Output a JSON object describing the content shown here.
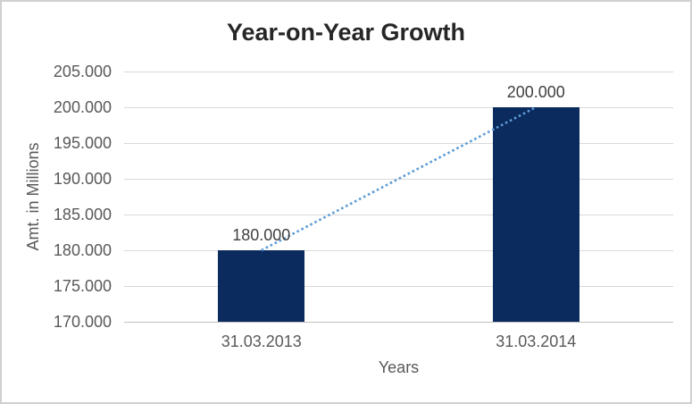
{
  "chart_data": {
    "type": "bar",
    "title": "Year-on-Year Growth",
    "xlabel": "Years",
    "ylabel": "Amt. in Millions",
    "categories": [
      "31.03.2013",
      "31.03.2014"
    ],
    "values": [
      180000,
      200000
    ],
    "value_labels": [
      "180.000",
      "200.000"
    ],
    "ylim": [
      170000,
      205000
    ],
    "ytick_step": 5000,
    "yticks": [
      {
        "value": 205000,
        "label": "205.000"
      },
      {
        "value": 200000,
        "label": "200.000"
      },
      {
        "value": 195000,
        "label": "195.000"
      },
      {
        "value": 190000,
        "label": "190.000"
      },
      {
        "value": 185000,
        "label": "185.000"
      },
      {
        "value": 180000,
        "label": "180.000"
      },
      {
        "value": 175000,
        "label": "175.000"
      },
      {
        "value": 170000,
        "label": "170.000"
      }
    ],
    "grid": true,
    "legend": "none",
    "trendline": {
      "style": "dotted",
      "from_category_index": 0,
      "from_value": 180000,
      "to_category_index": 1,
      "to_value": 200000
    },
    "colors": {
      "bar": "#0b2a5e",
      "trendline": "#5b9bd5",
      "gridline": "#d9d9d9",
      "axis_line": "#bfbfbf",
      "title_text": "#262626",
      "tick_text": "#595959",
      "axis_title_text": "#595959",
      "data_label_text": "#404040",
      "chart_border": "#d0d0d0",
      "background": "#ffffff"
    }
  }
}
